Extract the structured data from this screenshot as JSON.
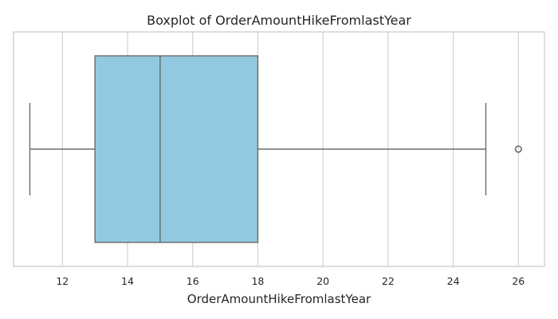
{
  "chart_data": {
    "type": "boxplot",
    "title": "Boxplot of OrderAmountHikeFromlastYear",
    "xlabel": "OrderAmountHikeFromlastYear",
    "ylabel": "",
    "orientation": "horizontal",
    "xlim": [
      10.5,
      26.8
    ],
    "xticks": [
      12,
      14,
      16,
      18,
      20,
      22,
      24,
      26
    ],
    "grid": true,
    "box": {
      "whisker_low": 11,
      "q1": 13,
      "median": 15,
      "q3": 18,
      "whisker_high": 25,
      "outliers": [
        26
      ]
    },
    "colors": {
      "box_fill": "#92c9e0",
      "line": "#6b6b6b"
    }
  }
}
